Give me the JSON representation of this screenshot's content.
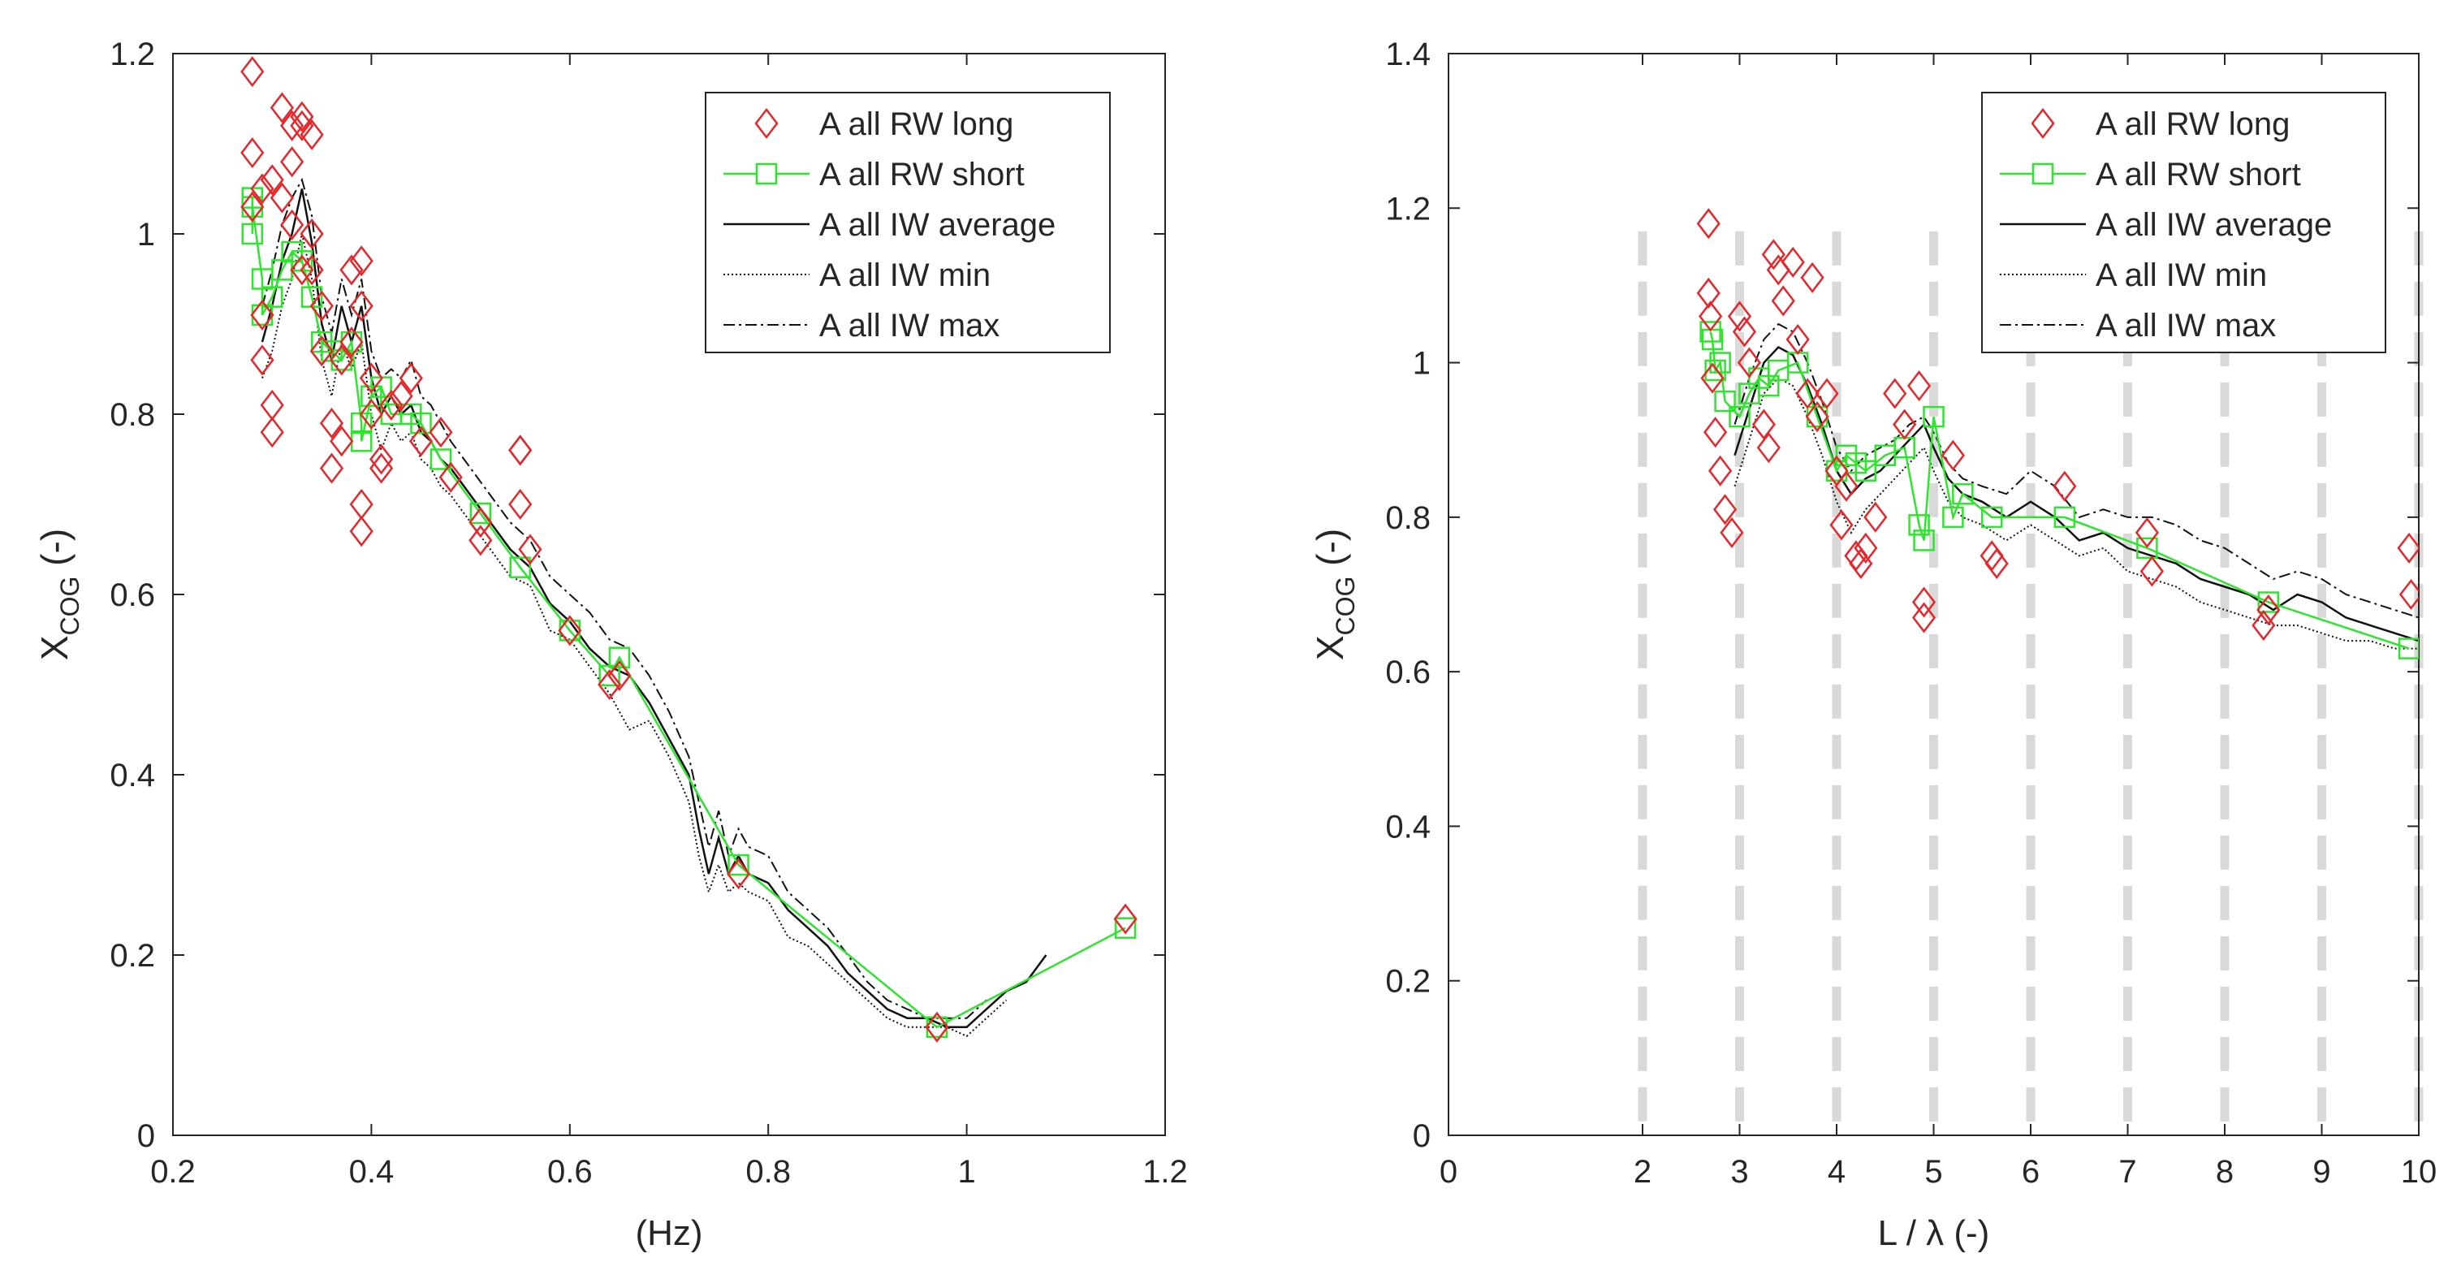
{
  "chart_data": [
    {
      "type": "scatter",
      "id": "left",
      "xlabel": "(Hz)",
      "ylabel": "X",
      "ylabel_sub": "COG",
      "ylabel_suffix": " (-)",
      "xlim": [
        0.2,
        1.2
      ],
      "ylim": [
        0,
        1.2
      ],
      "xticks": [
        0.2,
        0.4,
        0.6,
        0.8,
        1,
        1.2
      ],
      "xtick_labels": [
        "0.2",
        "0.4",
        "0.6",
        "0.8",
        "1",
        "1.2"
      ],
      "yticks": [
        0,
        0.2,
        0.4,
        0.6,
        0.8,
        1,
        1.2
      ],
      "ytick_labels": [
        "0",
        "0.2",
        "0.4",
        "0.6",
        "0.8",
        "1",
        "1.2"
      ],
      "legend": [
        {
          "label": "A all RW long",
          "style": "diamond"
        },
        {
          "label": "A all RW short",
          "style": "square-line"
        },
        {
          "label": "A all IW average",
          "style": "solid"
        },
        {
          "label": "A all IW min",
          "style": "dotted"
        },
        {
          "label": "A all IW max",
          "style": "dashdot"
        }
      ],
      "series": [
        {
          "name": "A all RW long",
          "marker": "diamond",
          "color": "#e8262a",
          "x": [
            0.28,
            0.28,
            0.29,
            0.28,
            0.29,
            0.29,
            0.3,
            0.3,
            0.3,
            0.31,
            0.31,
            0.32,
            0.32,
            0.32,
            0.33,
            0.33,
            0.33,
            0.34,
            0.34,
            0.34,
            0.35,
            0.35,
            0.36,
            0.36,
            0.37,
            0.37,
            0.38,
            0.38,
            0.39,
            0.39,
            0.39,
            0.39,
            0.4,
            0.4,
            0.41,
            0.41,
            0.42,
            0.43,
            0.44,
            0.45,
            0.47,
            0.48,
            0.51,
            0.51,
            0.55,
            0.55,
            0.55,
            0.56,
            0.6,
            0.64,
            0.65,
            0.77,
            0.97,
            1.16
          ],
          "y": [
            1.18,
            1.09,
            1.05,
            1.03,
            0.91,
            0.86,
            0.81,
            0.78,
            1.06,
            1.04,
            1.14,
            1.12,
            1.08,
            1.01,
            0.96,
            1.13,
            1.12,
            1.11,
            1.0,
            0.96,
            0.92,
            0.87,
            0.79,
            0.74,
            0.86,
            0.77,
            0.88,
            0.96,
            0.92,
            0.97,
            0.7,
            0.67,
            0.8,
            0.84,
            0.75,
            0.74,
            0.81,
            0.82,
            0.84,
            0.77,
            0.78,
            0.73,
            0.68,
            0.66,
            0.76,
            0.76,
            0.7,
            0.65,
            0.56,
            0.5,
            0.51,
            0.29,
            0.12,
            0.24
          ]
        },
        {
          "name": "A all RW short",
          "marker": "square",
          "color": "#2ee52e",
          "x": [
            0.28,
            0.28,
            0.28,
            0.29,
            0.29,
            0.3,
            0.31,
            0.32,
            0.33,
            0.34,
            0.35,
            0.36,
            0.37,
            0.38,
            0.39,
            0.39,
            0.4,
            0.41,
            0.42,
            0.44,
            0.45,
            0.47,
            0.51,
            0.55,
            0.6,
            0.64,
            0.65,
            0.77,
            0.97,
            1.16
          ],
          "y": [
            1.04,
            1.0,
            1.03,
            0.95,
            0.91,
            0.93,
            0.96,
            0.98,
            0.97,
            0.93,
            0.88,
            0.87,
            0.86,
            0.88,
            0.79,
            0.77,
            0.82,
            0.83,
            0.8,
            0.8,
            0.79,
            0.75,
            0.69,
            0.63,
            0.56,
            0.51,
            0.53,
            0.3,
            0.12,
            0.23
          ]
        },
        {
          "name": "A all IW average",
          "line": "solid",
          "color": "#111111",
          "x": [
            0.29,
            0.3,
            0.31,
            0.32,
            0.33,
            0.34,
            0.35,
            0.36,
            0.37,
            0.38,
            0.39,
            0.4,
            0.41,
            0.42,
            0.43,
            0.44,
            0.45,
            0.46,
            0.47,
            0.48,
            0.5,
            0.52,
            0.54,
            0.56,
            0.58,
            0.6,
            0.62,
            0.64,
            0.66,
            0.68,
            0.7,
            0.72,
            0.73,
            0.74,
            0.75,
            0.76,
            0.77,
            0.78,
            0.8,
            0.82,
            0.84,
            0.86,
            0.88,
            0.9,
            0.92,
            0.94,
            0.96,
            0.98,
            1.0,
            1.02,
            1.04,
            1.06,
            1.08
          ],
          "y": [
            0.88,
            0.92,
            0.97,
            1.0,
            1.05,
            0.99,
            0.9,
            0.86,
            0.92,
            0.88,
            0.92,
            0.84,
            0.8,
            0.82,
            0.8,
            0.81,
            0.78,
            0.77,
            0.75,
            0.74,
            0.71,
            0.68,
            0.65,
            0.63,
            0.59,
            0.57,
            0.54,
            0.52,
            0.51,
            0.48,
            0.44,
            0.4,
            0.34,
            0.29,
            0.33,
            0.29,
            0.31,
            0.29,
            0.28,
            0.25,
            0.23,
            0.21,
            0.18,
            0.16,
            0.14,
            0.13,
            0.13,
            0.12,
            0.12,
            0.14,
            0.16,
            0.17,
            0.2
          ]
        },
        {
          "name": "A all IW min",
          "line": "dotted",
          "color": "#111111",
          "x": [
            0.29,
            0.3,
            0.31,
            0.32,
            0.33,
            0.34,
            0.35,
            0.36,
            0.37,
            0.38,
            0.39,
            0.4,
            0.41,
            0.42,
            0.43,
            0.44,
            0.45,
            0.46,
            0.47,
            0.48,
            0.5,
            0.52,
            0.54,
            0.56,
            0.58,
            0.6,
            0.62,
            0.64,
            0.66,
            0.68,
            0.7,
            0.72,
            0.73,
            0.74,
            0.75,
            0.76,
            0.77,
            0.78,
            0.8,
            0.82,
            0.84,
            0.86,
            0.88,
            0.9,
            0.92,
            0.94,
            0.96,
            0.98,
            1.0,
            1.02,
            1.04
          ],
          "y": [
            0.84,
            0.87,
            0.92,
            0.95,
            1.0,
            0.95,
            0.86,
            0.82,
            0.88,
            0.85,
            0.88,
            0.8,
            0.76,
            0.79,
            0.77,
            0.78,
            0.75,
            0.74,
            0.72,
            0.71,
            0.68,
            0.65,
            0.62,
            0.61,
            0.56,
            0.55,
            0.52,
            0.49,
            0.45,
            0.46,
            0.42,
            0.37,
            0.31,
            0.27,
            0.3,
            0.27,
            0.28,
            0.27,
            0.26,
            0.22,
            0.21,
            0.19,
            0.17,
            0.15,
            0.13,
            0.12,
            0.12,
            0.12,
            0.11,
            0.13,
            0.15
          ]
        },
        {
          "name": "A all IW max",
          "line": "dashdot",
          "color": "#111111",
          "x": [
            0.29,
            0.3,
            0.31,
            0.32,
            0.33,
            0.34,
            0.35,
            0.36,
            0.37,
            0.38,
            0.39,
            0.4,
            0.41,
            0.42,
            0.43,
            0.44,
            0.45,
            0.46,
            0.47,
            0.48,
            0.5,
            0.52,
            0.54,
            0.56,
            0.58,
            0.6,
            0.62,
            0.64,
            0.66,
            0.68,
            0.7,
            0.72,
            0.73,
            0.74,
            0.75,
            0.76,
            0.77,
            0.78,
            0.8,
            0.82,
            0.84,
            0.86,
            0.88,
            0.9,
            0.92,
            0.94,
            0.96,
            0.98,
            1.0,
            1.02
          ],
          "y": [
            0.92,
            0.96,
            1.01,
            1.04,
            1.06,
            1.02,
            0.93,
            0.89,
            0.95,
            0.91,
            0.95,
            0.87,
            0.84,
            0.85,
            0.84,
            0.86,
            0.82,
            0.81,
            0.79,
            0.77,
            0.74,
            0.71,
            0.68,
            0.66,
            0.62,
            0.6,
            0.58,
            0.55,
            0.54,
            0.51,
            0.47,
            0.42,
            0.37,
            0.32,
            0.36,
            0.31,
            0.34,
            0.32,
            0.31,
            0.27,
            0.25,
            0.23,
            0.2,
            0.17,
            0.15,
            0.14,
            0.13,
            0.13,
            0.13,
            0.15
          ]
        }
      ]
    },
    {
      "type": "scatter",
      "id": "right",
      "xlabel": "L / λ (-)",
      "ylabel": "X",
      "ylabel_sub": "COG",
      "ylabel_suffix": " (-)",
      "xlim": [
        0,
        10
      ],
      "ylim": [
        0,
        1.4
      ],
      "xticks": [
        0,
        2,
        3,
        4,
        5,
        6,
        7,
        8,
        9,
        10
      ],
      "xtick_labels": [
        "0",
        "2",
        "3",
        "4",
        "5",
        "6",
        "7",
        "8",
        "9",
        "10"
      ],
      "yticks": [
        0,
        0.2,
        0.4,
        0.6,
        0.8,
        1,
        1.2,
        1.4
      ],
      "ytick_labels": [
        "0",
        "0.2",
        "0.4",
        "0.6",
        "0.8",
        "1",
        "1.2",
        "1.4"
      ],
      "vlines": {
        "x": [
          2,
          3,
          4,
          5,
          6,
          7,
          8,
          9,
          10
        ],
        "y_top": 1.17,
        "color": "#d9d9d9"
      },
      "legend": [
        {
          "label": "A all RW long",
          "style": "diamond"
        },
        {
          "label": "A all RW short",
          "style": "square-line"
        },
        {
          "label": "A all IW average",
          "style": "solid"
        },
        {
          "label": "A all IW min",
          "style": "dotted"
        },
        {
          "label": "A all IW max",
          "style": "dashdot"
        }
      ],
      "series": [
        {
          "name": "A all RW long",
          "marker": "diamond",
          "color": "#e8262a",
          "x": [
            2.68,
            2.68,
            2.7,
            2.72,
            2.75,
            2.8,
            2.85,
            2.92,
            3.0,
            3.05,
            3.1,
            3.25,
            3.3,
            3.35,
            3.4,
            3.45,
            3.55,
            3.6,
            3.7,
            3.75,
            3.8,
            3.9,
            4.0,
            4.05,
            4.1,
            4.2,
            4.25,
            4.3,
            4.4,
            4.6,
            4.7,
            4.85,
            4.9,
            4.9,
            5.2,
            5.6,
            5.65,
            6.35,
            7.2,
            7.25,
            8.4,
            8.45,
            9.9,
            9.92
          ],
          "y": [
            1.18,
            1.09,
            1.06,
            0.98,
            0.91,
            0.86,
            0.81,
            0.78,
            1.06,
            1.04,
            1.0,
            0.92,
            0.89,
            1.14,
            1.12,
            1.08,
            1.13,
            1.03,
            0.96,
            1.11,
            0.93,
            0.96,
            0.86,
            0.79,
            0.84,
            0.75,
            0.74,
            0.76,
            0.8,
            0.96,
            0.92,
            0.97,
            0.69,
            0.67,
            0.88,
            0.75,
            0.74,
            0.84,
            0.78,
            0.73,
            0.66,
            0.68,
            0.76,
            0.7
          ]
        },
        {
          "name": "A all RW short",
          "marker": "square",
          "color": "#2ee52e",
          "x": [
            2.7,
            2.72,
            2.75,
            2.8,
            2.85,
            3.0,
            3.1,
            3.2,
            3.3,
            3.4,
            3.6,
            3.8,
            4.0,
            4.1,
            4.2,
            4.3,
            4.5,
            4.7,
            4.85,
            4.9,
            5.0,
            5.2,
            5.3,
            5.6,
            6.35,
            7.2,
            8.45,
            9.9
          ],
          "y": [
            1.04,
            1.03,
            0.99,
            1.0,
            0.95,
            0.93,
            0.96,
            0.98,
            0.97,
            0.99,
            1.0,
            0.93,
            0.86,
            0.88,
            0.87,
            0.86,
            0.88,
            0.89,
            0.79,
            0.77,
            0.93,
            0.8,
            0.83,
            0.8,
            0.8,
            0.76,
            0.69,
            0.63
          ]
        },
        {
          "name": "A all IW average",
          "line": "solid",
          "color": "#111111",
          "x": [
            2.95,
            3.1,
            3.25,
            3.4,
            3.55,
            3.7,
            3.85,
            4.0,
            4.15,
            4.3,
            4.45,
            4.6,
            4.75,
            4.9,
            5.0,
            5.15,
            5.3,
            5.5,
            5.75,
            6.0,
            6.25,
            6.5,
            6.75,
            7.0,
            7.25,
            7.5,
            7.75,
            8.0,
            8.25,
            8.5,
            8.75,
            9.0,
            9.25,
            9.5,
            9.75,
            10.0
          ],
          "y": [
            0.88,
            0.94,
            1.0,
            1.02,
            1.01,
            0.97,
            0.92,
            0.86,
            0.83,
            0.85,
            0.86,
            0.88,
            0.9,
            0.92,
            0.89,
            0.85,
            0.83,
            0.82,
            0.8,
            0.82,
            0.8,
            0.77,
            0.78,
            0.76,
            0.75,
            0.74,
            0.72,
            0.71,
            0.7,
            0.68,
            0.7,
            0.69,
            0.67,
            0.66,
            0.65,
            0.64
          ]
        },
        {
          "name": "A all IW min",
          "line": "dotted",
          "color": "#111111",
          "x": [
            2.95,
            3.1,
            3.25,
            3.4,
            3.55,
            3.7,
            3.85,
            4.0,
            4.15,
            4.3,
            4.45,
            4.6,
            4.75,
            4.9,
            5.0,
            5.15,
            5.3,
            5.5,
            5.75,
            6.0,
            6.25,
            6.5,
            6.75,
            7.0,
            7.25,
            7.5,
            7.75,
            8.0,
            8.25,
            8.5,
            8.75,
            9.0,
            9.25,
            9.5,
            9.75,
            10.0
          ],
          "y": [
            0.84,
            0.9,
            0.96,
            0.98,
            0.97,
            0.93,
            0.88,
            0.82,
            0.78,
            0.81,
            0.83,
            0.85,
            0.87,
            0.89,
            0.86,
            0.82,
            0.8,
            0.79,
            0.77,
            0.79,
            0.77,
            0.75,
            0.76,
            0.73,
            0.72,
            0.71,
            0.69,
            0.68,
            0.67,
            0.66,
            0.66,
            0.65,
            0.64,
            0.64,
            0.63,
            0.63
          ]
        },
        {
          "name": "A all IW max",
          "line": "dashdot",
          "color": "#111111",
          "x": [
            2.95,
            3.1,
            3.25,
            3.4,
            3.55,
            3.7,
            3.85,
            4.0,
            4.15,
            4.3,
            4.45,
            4.6,
            4.75,
            4.9,
            5.0,
            5.15,
            5.3,
            5.5,
            5.75,
            6.0,
            6.25,
            6.5,
            6.75,
            7.0,
            7.25,
            7.5,
            7.75,
            8.0,
            8.25,
            8.5,
            8.75,
            9.0,
            9.25,
            9.5,
            9.75,
            10.0
          ],
          "y": [
            0.92,
            0.98,
            1.03,
            1.05,
            1.04,
            1.0,
            0.95,
            0.89,
            0.86,
            0.88,
            0.89,
            0.9,
            0.92,
            0.93,
            0.91,
            0.87,
            0.85,
            0.84,
            0.83,
            0.86,
            0.84,
            0.8,
            0.81,
            0.8,
            0.8,
            0.79,
            0.77,
            0.76,
            0.74,
            0.72,
            0.73,
            0.72,
            0.7,
            0.69,
            0.68,
            0.67
          ]
        }
      ]
    }
  ]
}
